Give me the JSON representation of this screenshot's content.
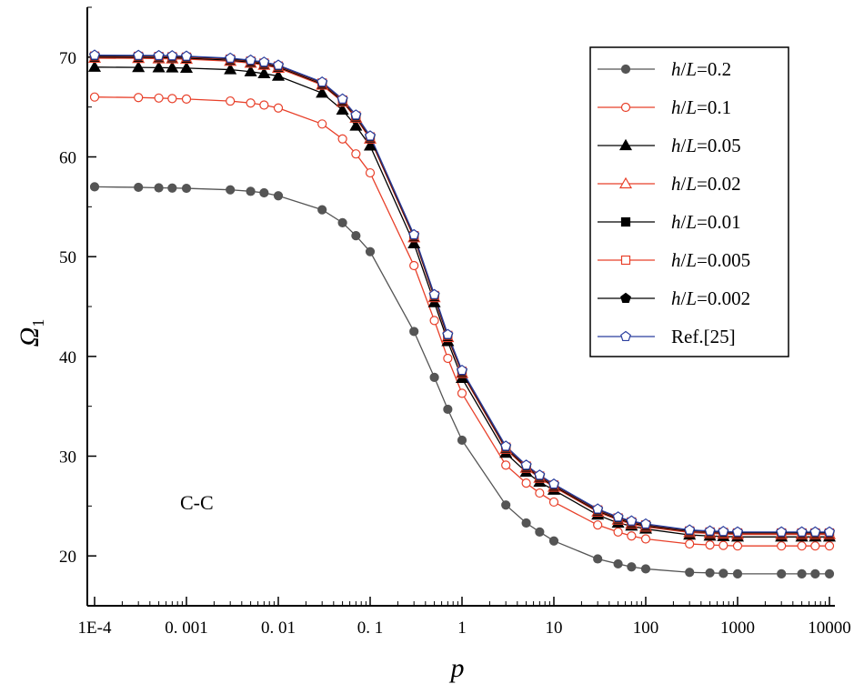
{
  "chart_data": {
    "type": "line",
    "title": "",
    "xlabel": "p",
    "ylabel": "Ω",
    "ylabel_subscript": "1",
    "xscale": "log",
    "xlim": [
      0.0001,
      10000
    ],
    "ylim": [
      15,
      75
    ],
    "x_ticks": [
      {
        "value": 0.0001,
        "label": "1E-4"
      },
      {
        "value": 0.001,
        "label": "0. 001"
      },
      {
        "value": 0.01,
        "label": "0. 01"
      },
      {
        "value": 0.1,
        "label": "0. 1"
      },
      {
        "value": 1,
        "label": "1"
      },
      {
        "value": 10,
        "label": "10"
      },
      {
        "value": 100,
        "label": "100"
      },
      {
        "value": 1000,
        "label": "1000"
      },
      {
        "value": 10000,
        "label": "10000"
      }
    ],
    "y_ticks": [
      {
        "value": 20,
        "label": "20"
      },
      {
        "value": 30,
        "label": "30"
      },
      {
        "value": 40,
        "label": "40"
      },
      {
        "value": 50,
        "label": "50"
      },
      {
        "value": 60,
        "label": "60"
      },
      {
        "value": 70,
        "label": "70"
      }
    ],
    "annotation": "C-C",
    "legend_position": "top-right",
    "x": [
      0.0001,
      0.0003,
      0.0005,
      0.0007,
      0.001,
      0.003,
      0.005,
      0.007,
      0.01,
      0.03,
      0.05,
      0.07,
      0.1,
      0.3,
      0.5,
      0.7,
      1,
      3,
      5,
      7,
      10,
      30,
      50,
      70,
      100,
      300,
      500,
      700,
      1000,
      3000,
      5000,
      7000,
      10000
    ],
    "series": [
      {
        "name": "h/L=0.2",
        "prefix": "h",
        "suffix": "/",
        "unit": "L",
        "value_text": "=0.2",
        "color": "#555555",
        "line_color": "#555555",
        "marker": "circle",
        "filled": true,
        "values": [
          57.0,
          56.95,
          56.9,
          56.88,
          56.85,
          56.7,
          56.55,
          56.4,
          56.1,
          54.7,
          53.4,
          52.1,
          50.5,
          42.5,
          37.9,
          34.7,
          31.6,
          25.1,
          23.3,
          22.4,
          21.5,
          19.7,
          19.2,
          18.9,
          18.7,
          18.35,
          18.3,
          18.25,
          18.2,
          18.2,
          18.2,
          18.2,
          18.2
        ]
      },
      {
        "name": "h/L=0.1",
        "prefix": "h",
        "suffix": "/",
        "unit": "L",
        "value_text": "=0.1",
        "color": "#e8402a",
        "line_color": "#e8402a",
        "marker": "circle",
        "filled": false,
        "values": [
          66.0,
          65.95,
          65.9,
          65.85,
          65.8,
          65.6,
          65.4,
          65.2,
          64.9,
          63.3,
          61.8,
          60.3,
          58.4,
          49.1,
          43.6,
          39.8,
          36.3,
          29.1,
          27.3,
          26.3,
          25.4,
          23.1,
          22.4,
          22.0,
          21.7,
          21.2,
          21.1,
          21.05,
          21.0,
          21.0,
          21.0,
          21.0,
          21.0
        ]
      },
      {
        "name": "h/L=0.05",
        "prefix": "h",
        "suffix": "/",
        "unit": "L",
        "value_text": "=0.05",
        "color": "#000000",
        "line_color": "#000000",
        "marker": "triangle",
        "filled": true,
        "values": [
          69.0,
          68.97,
          68.95,
          68.93,
          68.9,
          68.75,
          68.55,
          68.35,
          68.1,
          66.4,
          64.7,
          63.1,
          61.1,
          51.3,
          45.4,
          41.5,
          37.8,
          30.3,
          28.4,
          27.4,
          26.6,
          24.1,
          23.3,
          23.0,
          22.7,
          22.1,
          22.0,
          21.95,
          21.9,
          21.9,
          21.9,
          21.9,
          21.9
        ]
      },
      {
        "name": "h/L=0.02",
        "prefix": "h",
        "suffix": "/",
        "unit": "L",
        "value_text": "=0.02",
        "color": "#e8402a",
        "line_color": "#e8402a",
        "marker": "triangle",
        "filled": false,
        "values": [
          69.9,
          69.88,
          69.85,
          69.83,
          69.8,
          69.6,
          69.4,
          69.2,
          68.9,
          67.2,
          65.5,
          63.9,
          61.8,
          51.9,
          45.9,
          41.9,
          38.3,
          30.7,
          28.8,
          27.8,
          26.9,
          24.4,
          23.6,
          23.2,
          22.9,
          22.35,
          22.25,
          22.2,
          22.15,
          22.15,
          22.15,
          22.15,
          22.15
        ]
      },
      {
        "name": "h/L=0.01",
        "prefix": "h",
        "suffix": "/",
        "unit": "L",
        "value_text": "=0.01",
        "color": "#000000",
        "line_color": "#000000",
        "marker": "square",
        "filled": true,
        "values": [
          70.0,
          69.98,
          69.96,
          69.94,
          69.9,
          69.7,
          69.5,
          69.3,
          69.0,
          67.3,
          65.6,
          64.0,
          61.9,
          52.0,
          46.0,
          42.0,
          38.4,
          30.8,
          28.9,
          27.9,
          27.0,
          24.5,
          23.7,
          23.3,
          23.0,
          22.45,
          22.35,
          22.3,
          22.25,
          22.25,
          22.25,
          22.25,
          22.25
        ]
      },
      {
        "name": "h/L=0.005",
        "prefix": "h",
        "suffix": "/",
        "unit": "L",
        "value_text": "=0.005",
        "color": "#e8402a",
        "line_color": "#e8402a",
        "marker": "square",
        "filled": false,
        "values": [
          70.1,
          70.08,
          70.06,
          70.04,
          70.0,
          69.8,
          69.6,
          69.4,
          69.1,
          67.4,
          65.7,
          64.1,
          62.0,
          52.1,
          46.1,
          42.1,
          38.5,
          30.9,
          29.0,
          28.0,
          27.1,
          24.6,
          23.8,
          23.4,
          23.1,
          22.5,
          22.4,
          22.35,
          22.3,
          22.3,
          22.3,
          22.3,
          22.3
        ]
      },
      {
        "name": "h/L=0.002",
        "prefix": "h",
        "suffix": "/",
        "unit": "L",
        "value_text": "=0.002",
        "color": "#000000",
        "line_color": "#000000",
        "marker": "pentagon",
        "filled": true,
        "values": [
          70.15,
          70.13,
          70.11,
          70.09,
          70.05,
          69.85,
          69.65,
          69.45,
          69.15,
          67.45,
          65.75,
          64.15,
          62.05,
          52.15,
          46.15,
          42.15,
          38.55,
          30.95,
          29.05,
          28.05,
          27.15,
          24.65,
          23.85,
          23.45,
          23.15,
          22.55,
          22.45,
          22.4,
          22.35,
          22.35,
          22.35,
          22.35,
          22.35
        ]
      },
      {
        "name": "Ref.[25]",
        "prefix": "",
        "suffix": "",
        "unit": "",
        "value_text": "Ref.[25]",
        "color": "#2b3f9e",
        "line_color": "#2b3f9e",
        "marker": "pentagon",
        "filled": false,
        "values": [
          70.2,
          70.18,
          70.16,
          70.14,
          70.1,
          69.9,
          69.7,
          69.5,
          69.2,
          67.5,
          65.8,
          64.2,
          62.1,
          52.2,
          46.2,
          42.2,
          38.6,
          31.0,
          29.1,
          28.1,
          27.2,
          24.7,
          23.9,
          23.5,
          23.2,
          22.6,
          22.5,
          22.45,
          22.4,
          22.4,
          22.4,
          22.4,
          22.4
        ]
      }
    ]
  }
}
